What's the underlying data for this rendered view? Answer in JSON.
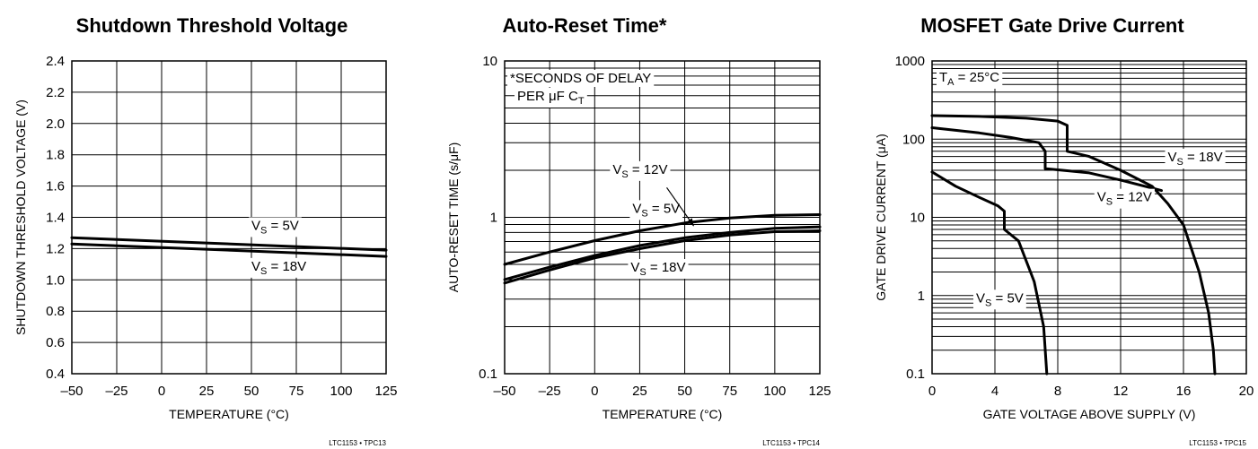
{
  "chart_data": [
    {
      "type": "line",
      "title": "Shutdown Threshold Voltage",
      "xlabel": "TEMPERATURE (°C)",
      "ylabel": "SHUTDOWN THRESHOLD VOLTAGE (V)",
      "xlim": [
        -50,
        125
      ],
      "ylim": [
        0.4,
        2.4
      ],
      "yscale": "linear",
      "xticks": [
        -50,
        -25,
        0,
        25,
        50,
        75,
        100,
        125
      ],
      "xtick_labels": [
        "–50",
        "–25",
        "0",
        "25",
        "50",
        "75",
        "100",
        "125"
      ],
      "yticks": [
        0.4,
        0.6,
        0.8,
        1.0,
        1.2,
        1.4,
        1.6,
        1.8,
        2.0,
        2.2,
        2.4
      ],
      "ytick_labels": [
        "0.4",
        "0.6",
        "0.8",
        "1.0",
        "1.2",
        "1.4",
        "1.6",
        "1.8",
        "2.0",
        "2.2",
        "2.4"
      ],
      "grid": true,
      "series": [
        {
          "name": "VS = 5V",
          "label_main": "V",
          "label_sub": "S",
          "label_rest": " = 5V",
          "label_x": 50,
          "label_y": 1.32,
          "x": [
            -50,
            125
          ],
          "y": [
            1.27,
            1.19
          ]
        },
        {
          "name": "VS = 18V",
          "label_main": "V",
          "label_sub": "S",
          "label_rest": " = 18V",
          "label_x": 50,
          "label_y": 1.06,
          "x": [
            -50,
            125
          ],
          "y": [
            1.23,
            1.15
          ]
        }
      ],
      "code": "LTC1153 • TPC13"
    },
    {
      "type": "line",
      "title": "Auto-Reset Time*",
      "xlabel": "TEMPERATURE (°C)",
      "ylabel": "AUTO-RESET TIME (s/μF)",
      "xlim": [
        -50,
        125
      ],
      "ylim": [
        0.1,
        10
      ],
      "yscale": "log",
      "xticks": [
        -50,
        -25,
        0,
        25,
        50,
        75,
        100,
        125
      ],
      "xtick_labels": [
        "–50",
        "–25",
        "0",
        "25",
        "50",
        "75",
        "100",
        "125"
      ],
      "yticks": [
        0.1,
        1,
        10
      ],
      "ytick_labels": [
        "0.1",
        "1",
        "10"
      ],
      "grid": true,
      "note_line1": "*SECONDS OF DELAY",
      "note_line2_main": "PER μF C",
      "note_line2_sub": "T",
      "series": [
        {
          "name": "VS = 12V",
          "label_main": "V",
          "label_sub": "S",
          "label_rest": " = 12V",
          "label_x": 10,
          "label_y": 1.9,
          "x": [
            -50,
            -25,
            0,
            25,
            50,
            75,
            100,
            125
          ],
          "y": [
            0.5,
            0.6,
            0.71,
            0.82,
            0.92,
            0.99,
            1.03,
            1.04
          ]
        },
        {
          "name": "VS = 5V",
          "label_main": "V",
          "label_sub": "S",
          "label_rest": " = 5V",
          "label_x": 21,
          "label_y": 1.07,
          "x": [
            -50,
            -25,
            0,
            25,
            50,
            75,
            100,
            125
          ],
          "y": [
            0.4,
            0.48,
            0.57,
            0.66,
            0.74,
            0.8,
            0.85,
            0.87
          ]
        },
        {
          "name": "VS = 18V",
          "label_main": "V",
          "label_sub": "S",
          "label_rest": " = 18V",
          "label_x": 20,
          "label_y": 0.45,
          "x": [
            -50,
            -25,
            0,
            25,
            50,
            75,
            100,
            125
          ],
          "y": [
            0.38,
            0.46,
            0.55,
            0.63,
            0.71,
            0.77,
            0.81,
            0.82
          ]
        }
      ],
      "code": "LTC1153 • TPC14"
    },
    {
      "type": "line",
      "title": "MOSFET Gate Drive Current",
      "xlabel": "GATE VOLTAGE ABOVE SUPPLY (V)",
      "ylabel": "GATE DRIVE CURRENT (μA)",
      "xlim": [
        0,
        20
      ],
      "ylim": [
        0.1,
        1000
      ],
      "yscale": "log",
      "xticks": [
        0,
        4,
        8,
        12,
        16,
        20
      ],
      "xtick_labels": [
        "0",
        "4",
        "8",
        "12",
        "16",
        "20"
      ],
      "yticks": [
        0.1,
        1,
        10,
        100,
        1000
      ],
      "ytick_labels": [
        "0.1",
        "1",
        "10",
        "100",
        "1000"
      ],
      "grid": true,
      "note_main": "T",
      "note_sub": "A",
      "note_rest": " = 25°C",
      "series": [
        {
          "name": "VS = 18V",
          "label_main": "V",
          "label_sub": "S",
          "label_rest": " = 18V",
          "label_x": 15,
          "label_y": 52,
          "x": [
            0,
            3,
            6,
            8,
            8.6,
            8.6,
            10,
            12,
            14,
            15,
            16,
            17,
            17.6,
            17.9,
            18
          ],
          "y": [
            200,
            195,
            185,
            170,
            150,
            70,
            60,
            40,
            25,
            15,
            8,
            2,
            0.6,
            0.2,
            0.1
          ]
        },
        {
          "name": "VS = 12V",
          "label_main": "V",
          "label_sub": "S",
          "label_rest": " = 12V",
          "label_x": 10.5,
          "label_y": 16,
          "x": [
            0,
            3,
            5,
            6.8,
            7.2,
            7.2,
            10,
            12,
            14.6
          ],
          "y": [
            140,
            120,
            105,
            90,
            70,
            42,
            37,
            30,
            22
          ]
        },
        {
          "name": "VS = 5V",
          "label_main": "V",
          "label_sub": "S",
          "label_rest": " = 5V",
          "label_x": 2.8,
          "label_y": 0.82,
          "x": [
            0,
            1.5,
            3,
            4.2,
            4.6,
            4.6,
            5.5,
            6.5,
            7.1,
            7.3
          ],
          "y": [
            38,
            25,
            18,
            14,
            12,
            7,
            5,
            1.5,
            0.4,
            0.1
          ]
        }
      ],
      "code": "LTC1153 • TPC15"
    }
  ]
}
